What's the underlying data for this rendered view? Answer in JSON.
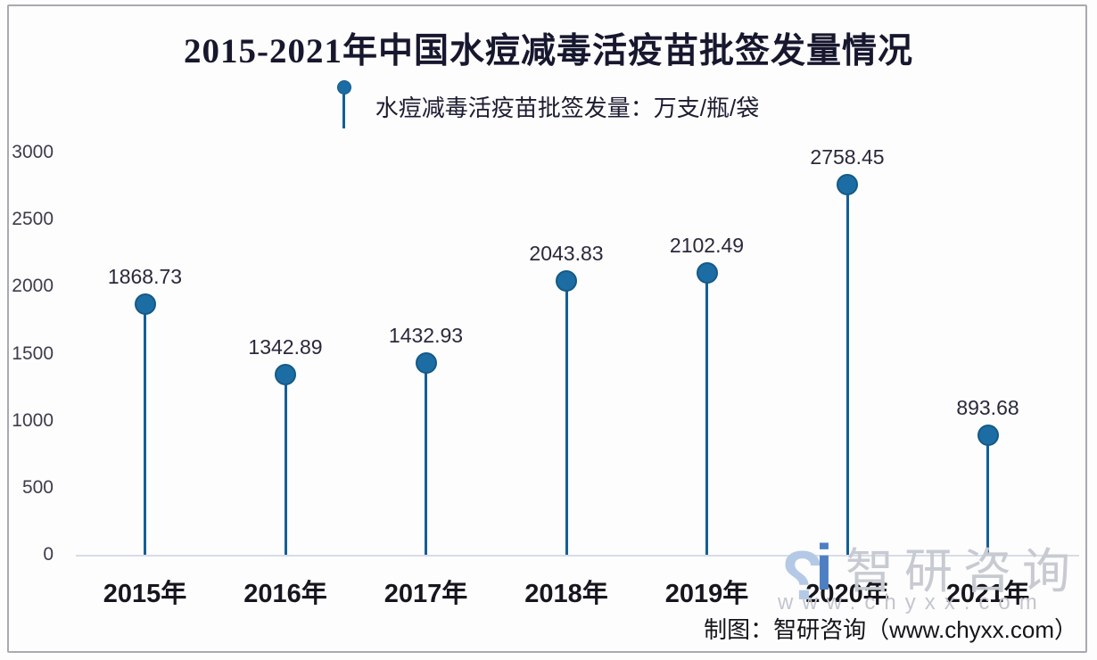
{
  "header": {
    "title": "2015-2021年中国水痘减毒活疫苗批签发量情况"
  },
  "legend": {
    "label": "水痘减毒活疫苗批签发量：万支/瓶/袋",
    "marker_icon": "lollipop-marker"
  },
  "chart_data": {
    "type": "lollipop",
    "categories": [
      "2015年",
      "2016年",
      "2017年",
      "2018年",
      "2019年",
      "2020年",
      "2021年"
    ],
    "values": [
      1868.73,
      1342.89,
      1432.93,
      2043.83,
      2102.49,
      2758.45,
      893.68
    ],
    "title": "2015-2021年中国水痘减毒活疫苗批签发量情况",
    "series_name": "水痘减毒活疫苗批签发量",
    "unit": "万支/瓶/袋",
    "xlabel": "",
    "ylabel": "",
    "ylim": [
      0,
      3000
    ],
    "yticks": [
      0,
      500,
      1000,
      1500,
      2000,
      2500,
      3000
    ],
    "grid": false,
    "legend_position": "top-center",
    "colors": {
      "marker_fill": "#1c6da3",
      "marker_border": "#145a86",
      "stem": "#135f95",
      "baseline": "#d7dce6",
      "title_text": "#17172e",
      "value_text": "#29293b",
      "axis_text": "#3c3c4c"
    }
  },
  "watermark": {
    "brand": "智研咨询",
    "url": "www.chyxx.com",
    "logo": "chyxx-logo"
  },
  "footer": {
    "credit": "制图：智研咨询（www.chyxx.com）"
  }
}
